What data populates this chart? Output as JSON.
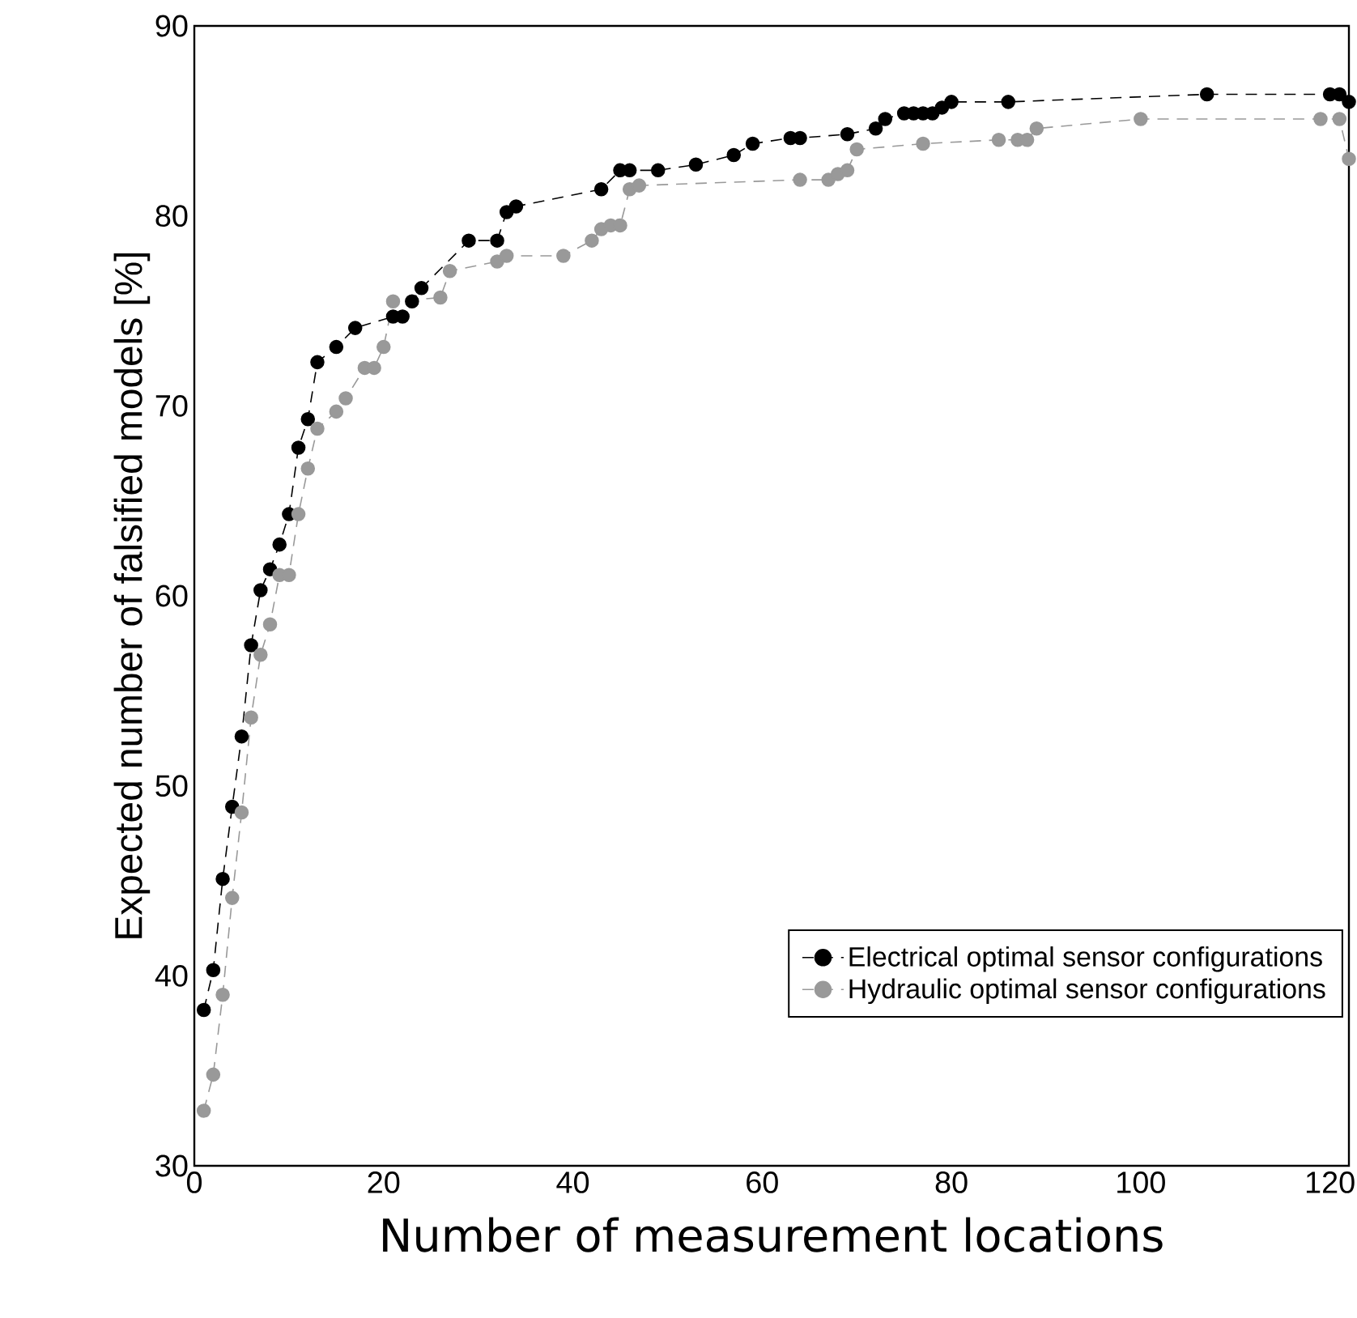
{
  "chart_data": {
    "type": "line",
    "xlabel": "Number of measurement locations",
    "ylabel": "Expected number of falsified models [%]",
    "xlim": [
      0,
      122
    ],
    "ylim": [
      30,
      90
    ],
    "xticks": [
      0,
      20,
      40,
      60,
      80,
      100,
      120
    ],
    "yticks": [
      30,
      40,
      50,
      60,
      70,
      80,
      90
    ],
    "grid": false,
    "legend": "bottom right",
    "marker": "circle",
    "line_style": "dashed",
    "series": [
      {
        "name": "Electrical optimal sensor configurations",
        "color": "#000000",
        "x": [
          1,
          2,
          3,
          4,
          5,
          6,
          7,
          8,
          9,
          10,
          11,
          12,
          13,
          15,
          17,
          21,
          22,
          23,
          24,
          29,
          32,
          33,
          34,
          43,
          45,
          46,
          49,
          53,
          57,
          59,
          63,
          64,
          69,
          72,
          73,
          75,
          76,
          77,
          78,
          79,
          80,
          86,
          107,
          120,
          121,
          122
        ],
        "values": [
          38.2,
          40.3,
          45.1,
          48.9,
          52.6,
          57.4,
          60.3,
          61.4,
          62.7,
          64.3,
          67.8,
          69.3,
          72.3,
          73.1,
          74.1,
          74.7,
          74.7,
          75.5,
          76.2,
          78.7,
          78.7,
          80.2,
          80.5,
          81.4,
          82.4,
          82.4,
          82.4,
          82.7,
          83.2,
          83.8,
          84.1,
          84.1,
          84.3,
          84.6,
          85.1,
          85.4,
          85.4,
          85.4,
          85.4,
          85.7,
          86.0,
          86.0,
          86.4,
          86.4,
          86.4,
          86.0
        ]
      },
      {
        "name": "Hydraulic optimal sensor configurations",
        "color": "#999999",
        "x": [
          1,
          2,
          3,
          4,
          5,
          6,
          7,
          8,
          9,
          10,
          11,
          12,
          13,
          15,
          16,
          18,
          19,
          20,
          21,
          26,
          27,
          32,
          33,
          39,
          42,
          43,
          44,
          45,
          46,
          47,
          64,
          67,
          68,
          69,
          70,
          77,
          85,
          87,
          88,
          89,
          100,
          119,
          121,
          122
        ],
        "values": [
          32.9,
          34.8,
          39.0,
          44.1,
          48.6,
          53.6,
          56.9,
          58.5,
          61.1,
          61.1,
          64.3,
          66.7,
          68.8,
          69.7,
          70.4,
          72.0,
          72.0,
          73.1,
          75.5,
          75.7,
          77.1,
          77.6,
          77.9,
          77.9,
          78.7,
          79.3,
          79.5,
          79.5,
          81.4,
          81.6,
          81.9,
          81.9,
          82.2,
          82.4,
          83.5,
          83.8,
          84.0,
          84.0,
          84.0,
          84.6,
          85.1,
          85.1,
          85.1,
          83.0
        ]
      }
    ]
  }
}
